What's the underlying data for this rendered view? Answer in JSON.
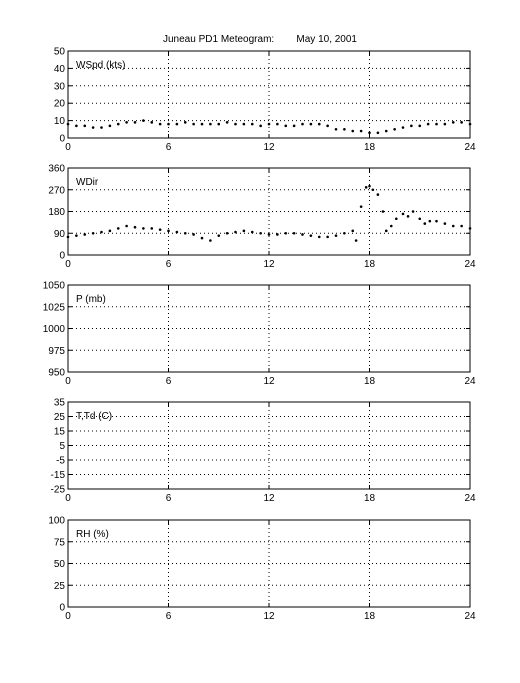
{
  "page": {
    "title": "Juneau PD1 Meteogram:        May 10, 2001"
  },
  "chart_data": [
    {
      "type": "scatter",
      "label": "WSpd (kts)",
      "xlim": [
        0,
        24
      ],
      "ylim": [
        0,
        50
      ],
      "xticks": [
        0,
        6,
        12,
        18,
        24
      ],
      "yticks": [
        0,
        10,
        20,
        30,
        40,
        50
      ],
      "grid": true,
      "series": [
        {
          "x": [
            0,
            0.5,
            1,
            1.5,
            2,
            2.5,
            3,
            3.5,
            4,
            4.5,
            5,
            5.5,
            6,
            6.5,
            7,
            7.5,
            8,
            8.5,
            9,
            9.5,
            10,
            10.5,
            11,
            11.5,
            12,
            12.5,
            13,
            13.5,
            14,
            14.5,
            15,
            15.5,
            16,
            16.5,
            17,
            17.5,
            18,
            18.5,
            19,
            19.5,
            20,
            20.5,
            21,
            21.5,
            22,
            22.5,
            23,
            23.5,
            24
          ],
          "y": [
            8,
            7,
            7,
            6,
            6,
            7,
            8,
            9,
            9,
            10,
            9,
            8,
            8,
            8,
            9,
            8,
            8,
            8,
            8,
            9,
            8,
            8,
            8,
            7,
            8,
            8,
            7,
            7,
            8,
            8,
            8,
            7,
            5,
            5,
            4,
            4,
            3,
            3,
            4,
            5,
            6,
            7,
            7,
            8,
            8,
            8,
            9,
            9,
            8
          ]
        }
      ]
    },
    {
      "type": "scatter",
      "label": "WDir",
      "xlim": [
        0,
        24
      ],
      "ylim": [
        0,
        360
      ],
      "xticks": [
        0,
        6,
        12,
        18,
        24
      ],
      "yticks": [
        0,
        90,
        180,
        270,
        360
      ],
      "grid": true,
      "series": [
        {
          "x": [
            0,
            0.5,
            1,
            1.5,
            2,
            2.5,
            3,
            3.5,
            4,
            4.5,
            5,
            5.5,
            6,
            6.5,
            7,
            7.5,
            8,
            8.5,
            9,
            9.5,
            10,
            10.5,
            11,
            11.5,
            12,
            12.5,
            13,
            13.5,
            14,
            14.5,
            15,
            15.5,
            16,
            16.5,
            17,
            17.2,
            17.5,
            17.8,
            18,
            18.2,
            18.5,
            18.8,
            19,
            19.3,
            19.6,
            20,
            20.3,
            20.6,
            21,
            21.3,
            21.6,
            22,
            22.5,
            23,
            23.5,
            24
          ],
          "y": [
            75,
            80,
            85,
            90,
            95,
            100,
            110,
            120,
            115,
            110,
            110,
            105,
            100,
            95,
            90,
            85,
            70,
            60,
            80,
            90,
            95,
            100,
            95,
            90,
            85,
            85,
            90,
            90,
            85,
            80,
            75,
            75,
            80,
            90,
            100,
            60,
            200,
            280,
            285,
            270,
            250,
            180,
            100,
            120,
            150,
            170,
            160,
            180,
            150,
            130,
            140,
            140,
            130,
            120,
            120,
            110
          ]
        }
      ]
    },
    {
      "type": "scatter",
      "label": "P (mb)",
      "xlim": [
        0,
        24
      ],
      "ylim": [
        950,
        1050
      ],
      "xticks": [
        0,
        6,
        12,
        18,
        24
      ],
      "yticks": [
        950,
        975,
        1000,
        1025,
        1050
      ],
      "grid": true,
      "series": []
    },
    {
      "type": "scatter",
      "label": "T,Td (C)",
      "xlim": [
        0,
        24
      ],
      "ylim": [
        -25,
        35
      ],
      "xticks": [
        0,
        6,
        12,
        18,
        24
      ],
      "yticks": [
        -25,
        -15,
        -5,
        5,
        15,
        25,
        35
      ],
      "grid": true,
      "series": []
    },
    {
      "type": "scatter",
      "label": "RH (%)",
      "xlim": [
        0,
        24
      ],
      "ylim": [
        0,
        100
      ],
      "xticks": [
        0,
        6,
        12,
        18,
        24
      ],
      "yticks": [
        0,
        25,
        50,
        75,
        100
      ],
      "grid": true,
      "series": []
    }
  ]
}
